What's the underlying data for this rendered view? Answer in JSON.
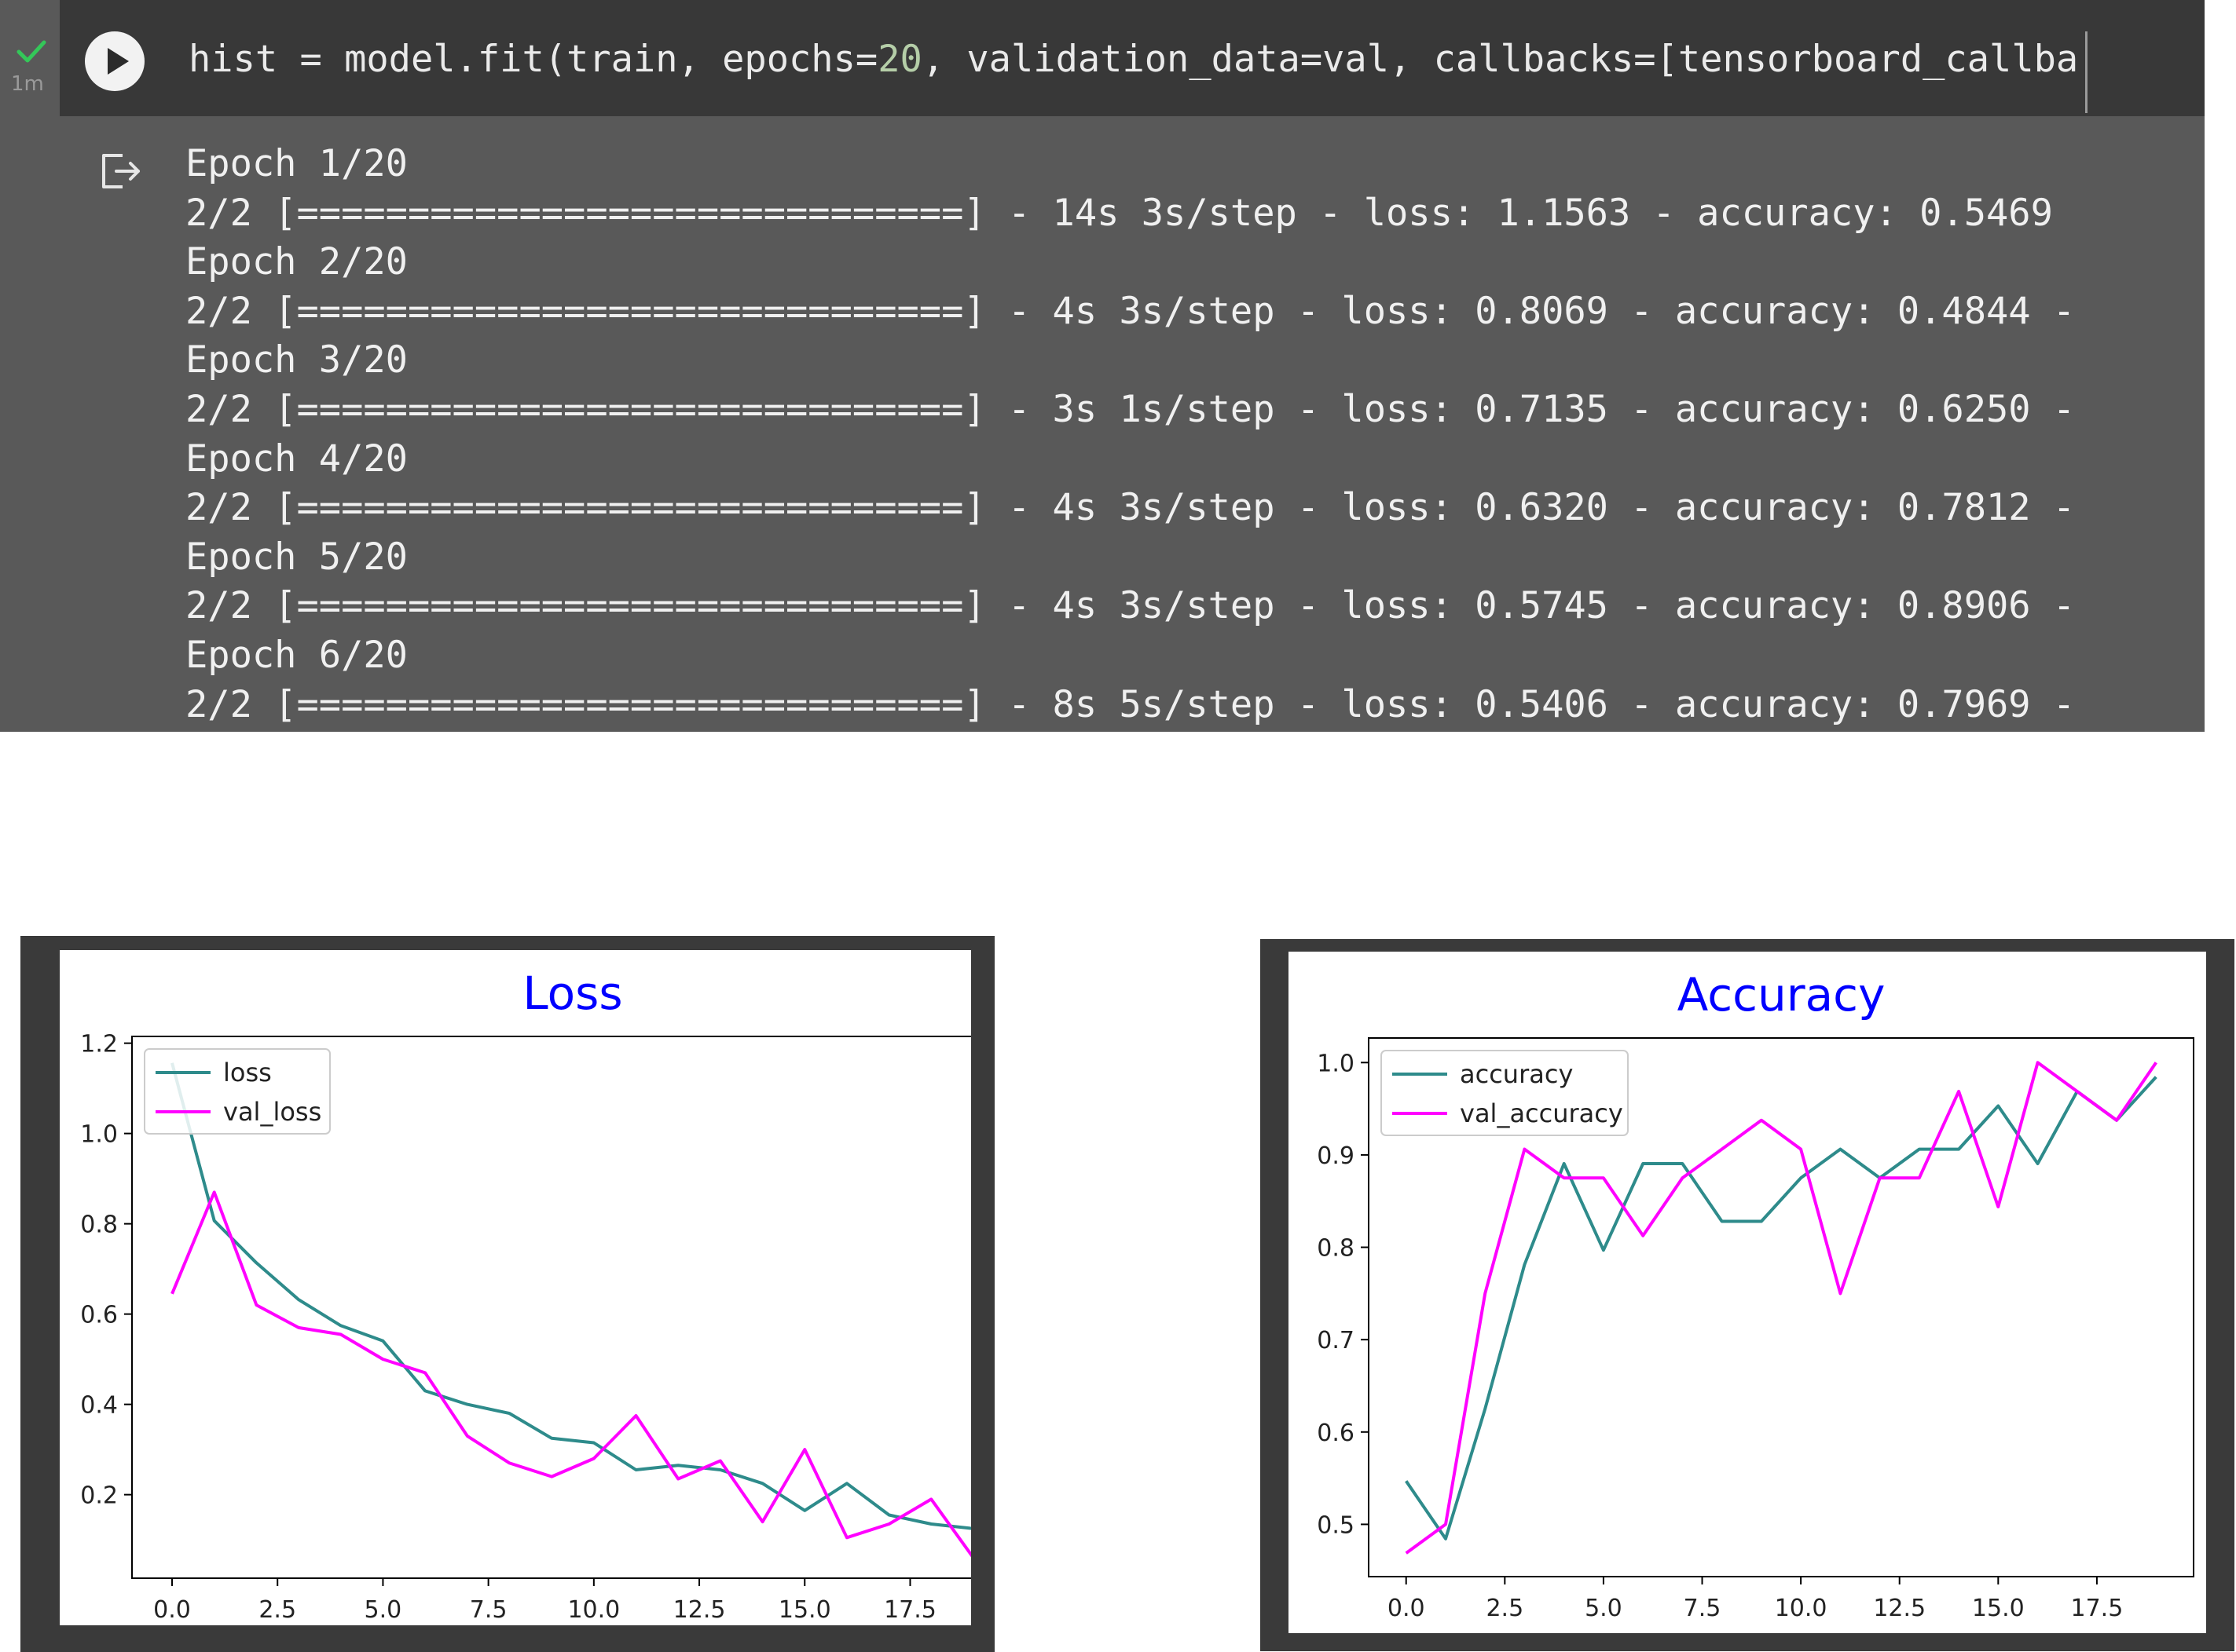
{
  "cell": {
    "status": "check-icon",
    "exec_time": "1m",
    "code": {
      "before_num": "hist = model.fit(train, epochs=",
      "num": "20",
      "after_num": ", validation_data=val, callbacks=[tensorboard_callba"
    },
    "output_icon": "output-redirect-icon",
    "output_lines": [
      "Epoch 1/20",
      "2/2 [==============================] - 14s 3s/step - loss: 1.1563 - accuracy: 0.5469",
      "Epoch 2/20",
      "2/2 [==============================] - 4s 3s/step - loss: 0.8069 - accuracy: 0.4844 -",
      "Epoch 3/20",
      "2/2 [==============================] - 3s 1s/step - loss: 0.7135 - accuracy: 0.6250 -",
      "Epoch 4/20",
      "2/2 [==============================] - 4s 3s/step - loss: 0.6320 - accuracy: 0.7812 -",
      "Epoch 5/20",
      "2/2 [==============================] - 4s 3s/step - loss: 0.5745 - accuracy: 0.8906 -",
      "Epoch 6/20",
      "2/2 [==============================] - 8s 5s/step - loss: 0.5406 - accuracy: 0.7969 -"
    ]
  },
  "chart_data": [
    {
      "type": "line",
      "title": "Loss",
      "xlabel": "",
      "ylabel": "",
      "title_color": "#0000ff",
      "xlim": [
        -0.95,
        19.95
      ],
      "ylim": [
        0.015,
        1.215
      ],
      "xticks": [
        0.0,
        2.5,
        5.0,
        7.5,
        10.0,
        12.5,
        15.0,
        17.5
      ],
      "xtick_labels": [
        "0.0",
        "2.5",
        "5.0",
        "7.5",
        "10.0",
        "12.5",
        "15.0",
        "17.5"
      ],
      "yticks": [
        0.2,
        0.4,
        0.6,
        0.8,
        1.0,
        1.2
      ],
      "ytick_labels": [
        "0.2",
        "0.4",
        "0.6",
        "0.8",
        "1.0",
        "1.2"
      ],
      "grid": false,
      "legend": "top-left",
      "x": [
        0,
        1,
        2,
        3,
        4,
        5,
        6,
        7,
        8,
        9,
        10,
        11,
        12,
        13,
        14,
        15,
        16,
        17,
        18,
        19
      ],
      "series": [
        {
          "name": "loss",
          "color": "#2e8b8b",
          "values": [
            1.1563,
            0.8069,
            0.7135,
            0.632,
            0.5745,
            0.5406,
            0.43,
            0.4,
            0.38,
            0.325,
            0.315,
            0.255,
            0.265,
            0.255,
            0.225,
            0.165,
            0.225,
            0.155,
            0.135,
            0.125
          ]
        },
        {
          "name": "val_loss",
          "color": "#ff00ff",
          "values": [
            0.645,
            0.87,
            0.62,
            0.57,
            0.555,
            0.5,
            0.47,
            0.33,
            0.27,
            0.24,
            0.28,
            0.375,
            0.235,
            0.275,
            0.14,
            0.3,
            0.105,
            0.135,
            0.19,
            0.06
          ]
        }
      ]
    },
    {
      "type": "line",
      "title": "Accuracy",
      "xlabel": "",
      "ylabel": "",
      "title_color": "#0000ff",
      "xlim": [
        -0.95,
        19.95
      ],
      "ylim": [
        0.4434,
        1.0266
      ],
      "xticks": [
        0.0,
        2.5,
        5.0,
        7.5,
        10.0,
        12.5,
        15.0,
        17.5
      ],
      "xtick_labels": [
        "0.0",
        "2.5",
        "5.0",
        "7.5",
        "10.0",
        "12.5",
        "15.0",
        "17.5"
      ],
      "yticks": [
        0.5,
        0.6,
        0.7,
        0.8,
        0.9,
        1.0
      ],
      "ytick_labels": [
        "0.5",
        "0.6",
        "0.7",
        "0.8",
        "0.9",
        "1.0"
      ],
      "grid": false,
      "legend": "top-left",
      "x": [
        0,
        1,
        2,
        3,
        4,
        5,
        6,
        7,
        8,
        9,
        10,
        11,
        12,
        13,
        14,
        15,
        16,
        17,
        18,
        19
      ],
      "series": [
        {
          "name": "accuracy",
          "color": "#2e8b8b",
          "values": [
            0.5469,
            0.4844,
            0.625,
            0.7812,
            0.8906,
            0.7969,
            0.8906,
            0.8906,
            0.8281,
            0.8281,
            0.875,
            0.9062,
            0.875,
            0.9062,
            0.9062,
            0.9531,
            0.8906,
            0.9688,
            0.9375,
            0.9844
          ]
        },
        {
          "name": "val_accuracy",
          "color": "#ff00ff",
          "values": [
            0.4688,
            0.5,
            0.75,
            0.9062,
            0.875,
            0.875,
            0.8125,
            0.875,
            0.9062,
            0.9375,
            0.9062,
            0.75,
            0.875,
            0.875,
            0.9688,
            0.8438,
            1.0,
            0.9688,
            0.9375,
            1.0
          ]
        }
      ]
    }
  ]
}
